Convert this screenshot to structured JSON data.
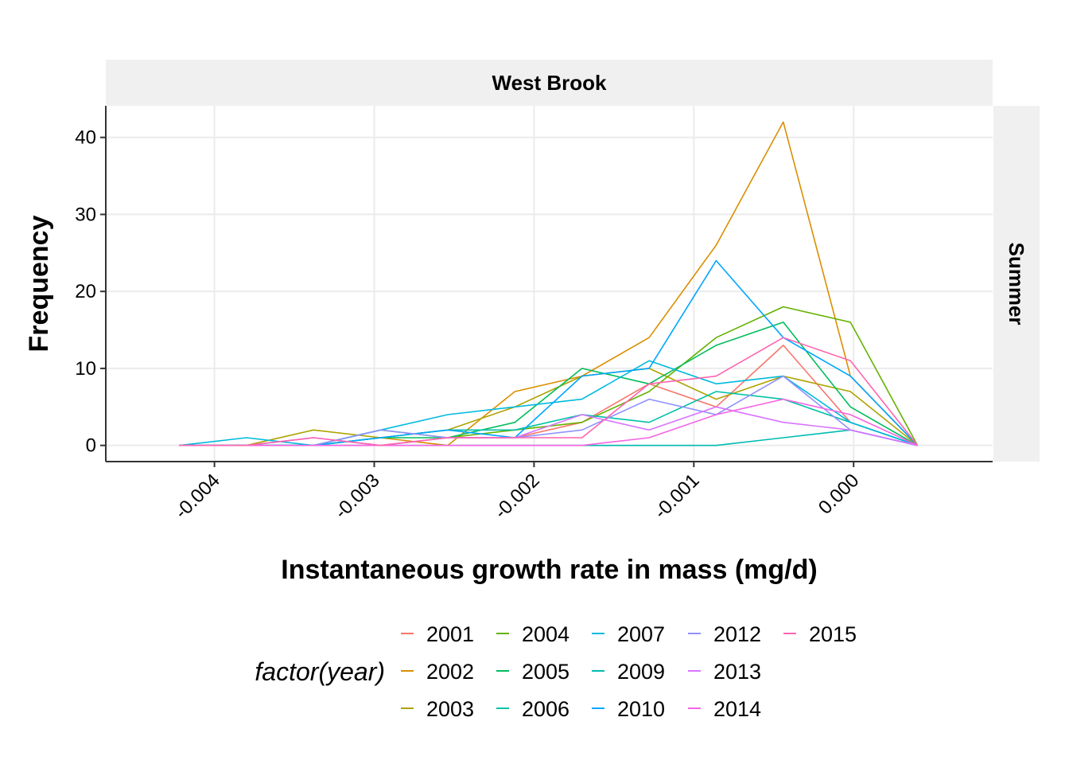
{
  "chart_data": {
    "type": "line",
    "title": "",
    "facet_column_label": "West Brook",
    "facet_row_label": "Summer",
    "xlabel": "Instantaneous growth rate in mass (mg/d)",
    "ylabel": "Frequency",
    "xlim": [
      -0.00468,
      0.00087
    ],
    "ylim": [
      -2.1,
      44.1
    ],
    "x_ticks": [
      -0.004,
      -0.003,
      -0.002,
      -0.001,
      0.0
    ],
    "x_tick_labels": [
      "-0.004",
      "-0.003",
      "-0.002",
      "-0.001",
      "0.000"
    ],
    "y_ticks": [
      0,
      10,
      20,
      30,
      40
    ],
    "y_tick_labels": [
      "0",
      "10",
      "20",
      "30",
      "40"
    ],
    "grid": true,
    "legend": {
      "title": "factor(year)",
      "position": "bottom",
      "columns": 5
    },
    "x": [
      -0.00422,
      -0.0038,
      -0.00338,
      -0.00296,
      -0.00254,
      -0.00212,
      -0.0017,
      -0.00128,
      -0.00086,
      -0.00044,
      -2e-05,
      0.0004
    ],
    "series": [
      {
        "name": "2001",
        "color": "#F8766D",
        "values": [
          0,
          0,
          0,
          0,
          1,
          1,
          3,
          8,
          5,
          13,
          3,
          0
        ]
      },
      {
        "name": "2002",
        "color": "#DB8E00",
        "values": [
          0,
          0,
          0,
          1,
          0,
          7,
          9,
          14,
          26,
          42,
          9,
          0
        ]
      },
      {
        "name": "2003",
        "color": "#AEA200",
        "values": [
          0,
          0,
          2,
          1,
          2,
          5,
          9,
          10,
          6,
          9,
          7,
          0
        ]
      },
      {
        "name": "2004",
        "color": "#64B200",
        "values": [
          0,
          0,
          0,
          2,
          1,
          2,
          3,
          7,
          14,
          18,
          16,
          0
        ]
      },
      {
        "name": "2005",
        "color": "#00BD5C",
        "values": [
          0,
          0,
          0,
          1,
          1,
          3,
          10,
          8,
          13,
          16,
          5,
          0
        ]
      },
      {
        "name": "2006",
        "color": "#00C1A7",
        "values": [
          0,
          0,
          0,
          1,
          2,
          2,
          4,
          3,
          7,
          6,
          3,
          0
        ]
      },
      {
        "name": "2007",
        "color": "#00BADE",
        "values": [
          0,
          1,
          0,
          2,
          4,
          5,
          6,
          11,
          8,
          9,
          3,
          0
        ]
      },
      {
        "name": "2009",
        "color": "#00BCB0",
        "values": [
          0,
          0,
          0,
          0,
          0,
          0,
          0,
          0,
          0,
          1,
          2,
          0
        ]
      },
      {
        "name": "2010",
        "color": "#00A6FF",
        "values": [
          0,
          0,
          0,
          1,
          2,
          1,
          9,
          10,
          24,
          14,
          9,
          0
        ]
      },
      {
        "name": "2012",
        "color": "#8F91FF",
        "values": [
          0,
          0,
          0,
          2,
          1,
          1,
          2,
          6,
          4,
          9,
          2,
          0
        ]
      },
      {
        "name": "2013",
        "color": "#D774FF",
        "values": [
          0,
          0,
          1,
          0,
          1,
          1,
          4,
          2,
          5,
          3,
          2,
          0
        ]
      },
      {
        "name": "2014",
        "color": "#F564E3",
        "values": [
          0,
          0,
          0,
          0,
          0,
          0,
          0,
          1,
          4,
          6,
          4,
          0
        ]
      },
      {
        "name": "2015",
        "color": "#FF64B0",
        "values": [
          0,
          0,
          1,
          0,
          1,
          1,
          1,
          8,
          9,
          14,
          11,
          0
        ]
      }
    ]
  }
}
